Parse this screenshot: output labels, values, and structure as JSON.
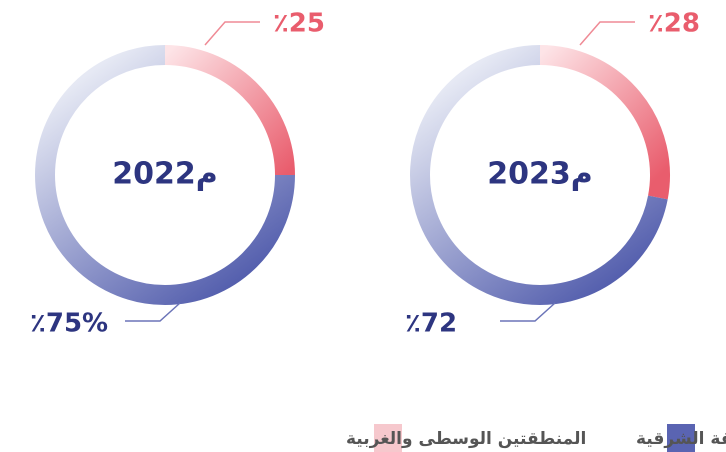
{
  "chart_data": [
    {
      "type": "pie",
      "title": "2022م",
      "values": [
        25,
        75
      ],
      "value_labels": [
        "٪25",
        "٪75%"
      ]
    },
    {
      "type": "pie",
      "title": "2023م",
      "values": [
        28,
        72
      ],
      "value_labels": [
        "٪28",
        "٪72"
      ]
    }
  ],
  "legend": {
    "labels": [
      "المنطقة الشرقية",
      "المنطقتين الوسطى والغربية"
    ],
    "colors": [
      "#5a64b2",
      "#f6c8cd"
    ]
  }
}
